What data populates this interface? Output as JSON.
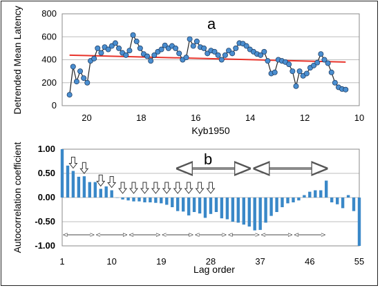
{
  "chart_data": [
    {
      "panel_label": "a",
      "type": "line",
      "ylabel": "Detrended Mean Latency",
      "xlabel": "Kyb1950",
      "xlim": [
        20.9,
        10.0
      ],
      "ylim": [
        0,
        800
      ],
      "xticks": [
        "20",
        "18",
        "16",
        "14",
        "12",
        "10"
      ],
      "yticks": [
        "0",
        "200",
        "400",
        "600",
        "800"
      ],
      "grid": true,
      "x_reversed": true,
      "series": [
        {
          "x": [
            20.63,
            20.5,
            20.37,
            20.24,
            20.11,
            19.98,
            19.86,
            19.73,
            19.6,
            19.47,
            19.34,
            19.21,
            19.08,
            18.95,
            18.82,
            18.69,
            18.56,
            18.43,
            18.3,
            18.17,
            18.04,
            17.91,
            17.78,
            17.65,
            17.52,
            17.39,
            17.26,
            17.13,
            17.0,
            16.87,
            16.74,
            16.61,
            16.48,
            16.35,
            16.22,
            16.09,
            15.96,
            15.83,
            15.7,
            15.57,
            15.44,
            15.31,
            15.18,
            15.05,
            14.92,
            14.79,
            14.66,
            14.53,
            14.4,
            14.27,
            14.14,
            14.01,
            13.88,
            13.75,
            13.62,
            13.49,
            13.36,
            13.23,
            13.1,
            12.97,
            12.84,
            12.71,
            12.58,
            12.45,
            12.32,
            12.19,
            12.06,
            11.93,
            11.8,
            11.67,
            11.54,
            11.41,
            11.28,
            11.15,
            11.02,
            10.89,
            10.76,
            10.63,
            10.5
          ],
          "y": [
            95,
            340,
            210,
            300,
            240,
            200,
            390,
            410,
            500,
            460,
            510,
            490,
            520,
            545,
            500,
            460,
            440,
            480,
            615,
            560,
            500,
            450,
            430,
            390,
            440,
            470,
            490,
            525,
            500,
            520,
            500,
            455,
            400,
            420,
            580,
            520,
            560,
            510,
            500,
            455,
            480,
            470,
            440,
            400,
            440,
            480,
            455,
            500,
            545,
            540,
            520,
            490,
            470,
            450,
            440,
            470,
            390,
            280,
            290,
            400,
            390,
            380,
            360,
            300,
            170,
            300,
            260,
            280,
            330,
            350,
            375,
            450,
            400,
            370,
            290,
            200,
            160,
            145,
            140
          ],
          "color": "#4a8ed0",
          "marker": "circle"
        }
      ],
      "trend_line": {
        "x": [
          20.63,
          10.5
        ],
        "y": [
          440,
          380
        ],
        "color": "#e8332a"
      }
    },
    {
      "panel_label": "b",
      "type": "bar",
      "ylabel": "Autocorrelation coefficient",
      "xlabel": "Lag order",
      "xlim": [
        1,
        55
      ],
      "ylim": [
        -1.0,
        1.0
      ],
      "xticks": [
        "1",
        "10",
        "19",
        "28",
        "37",
        "46",
        "55"
      ],
      "yticks": [
        "1.00",
        "0.50",
        "0.00",
        "-0.50",
        "-1.00"
      ],
      "grid": true,
      "color": "#3a88c8",
      "categories": [
        1,
        2,
        3,
        4,
        5,
        6,
        7,
        8,
        9,
        10,
        11,
        12,
        13,
        14,
        15,
        16,
        17,
        18,
        19,
        20,
        21,
        22,
        23,
        24,
        25,
        26,
        27,
        28,
        29,
        30,
        31,
        32,
        33,
        34,
        35,
        36,
        37,
        38,
        39,
        40,
        41,
        42,
        43,
        44,
        45,
        46,
        47,
        48,
        49,
        50,
        51,
        52,
        53,
        54,
        55
      ],
      "values": [
        1.0,
        0.66,
        0.55,
        0.43,
        0.44,
        0.32,
        0.32,
        0.18,
        0.23,
        0.15,
        0.0,
        -0.04,
        -0.06,
        -0.08,
        -0.08,
        -0.1,
        -0.1,
        -0.11,
        -0.12,
        -0.15,
        -0.2,
        -0.28,
        -0.29,
        -0.37,
        -0.3,
        -0.33,
        -0.42,
        -0.34,
        -0.3,
        -0.43,
        -0.45,
        -0.5,
        -0.52,
        -0.56,
        -0.6,
        -0.68,
        -0.67,
        -0.52,
        -0.38,
        -0.3,
        -0.2,
        -0.12,
        -0.1,
        -0.06,
        0.05,
        0.12,
        0.15,
        0.15,
        0.35,
        -0.1,
        -0.14,
        -0.22,
        0.05,
        -0.28,
        -1.0
      ],
      "arrows_down_at_lags": [
        3,
        5,
        8,
        10,
        12,
        14,
        16,
        18,
        20,
        22,
        24,
        26,
        28
      ],
      "annotations": [
        {
          "kind": "double_arrow_gray",
          "from_lag": 22,
          "to_lag": 35
        },
        {
          "kind": "double_arrow_gray",
          "from_lag": 36,
          "to_lag": 49
        },
        {
          "kind": "double_arrow_row_bottom",
          "from_lag": 1,
          "to_lag": 51
        }
      ]
    }
  ]
}
